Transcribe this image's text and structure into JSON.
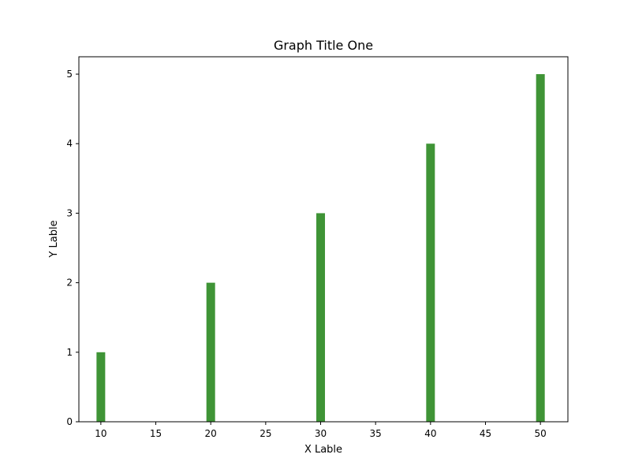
{
  "chart_data": {
    "type": "bar",
    "title": "Graph Title One",
    "xlabel": "X Lable",
    "ylabel": "Y Lable",
    "x": [
      10,
      20,
      30,
      40,
      50
    ],
    "values": [
      1,
      2,
      3,
      4,
      5
    ],
    "xlim": [
      8,
      52.5
    ],
    "ylim": [
      0,
      5.25
    ],
    "xticks": [
      10,
      15,
      20,
      25,
      30,
      35,
      40,
      45,
      50
    ],
    "yticks": [
      0,
      1,
      2,
      3,
      4,
      5
    ],
    "bar_color": "#3f9436",
    "grid": false,
    "legend": "none"
  }
}
